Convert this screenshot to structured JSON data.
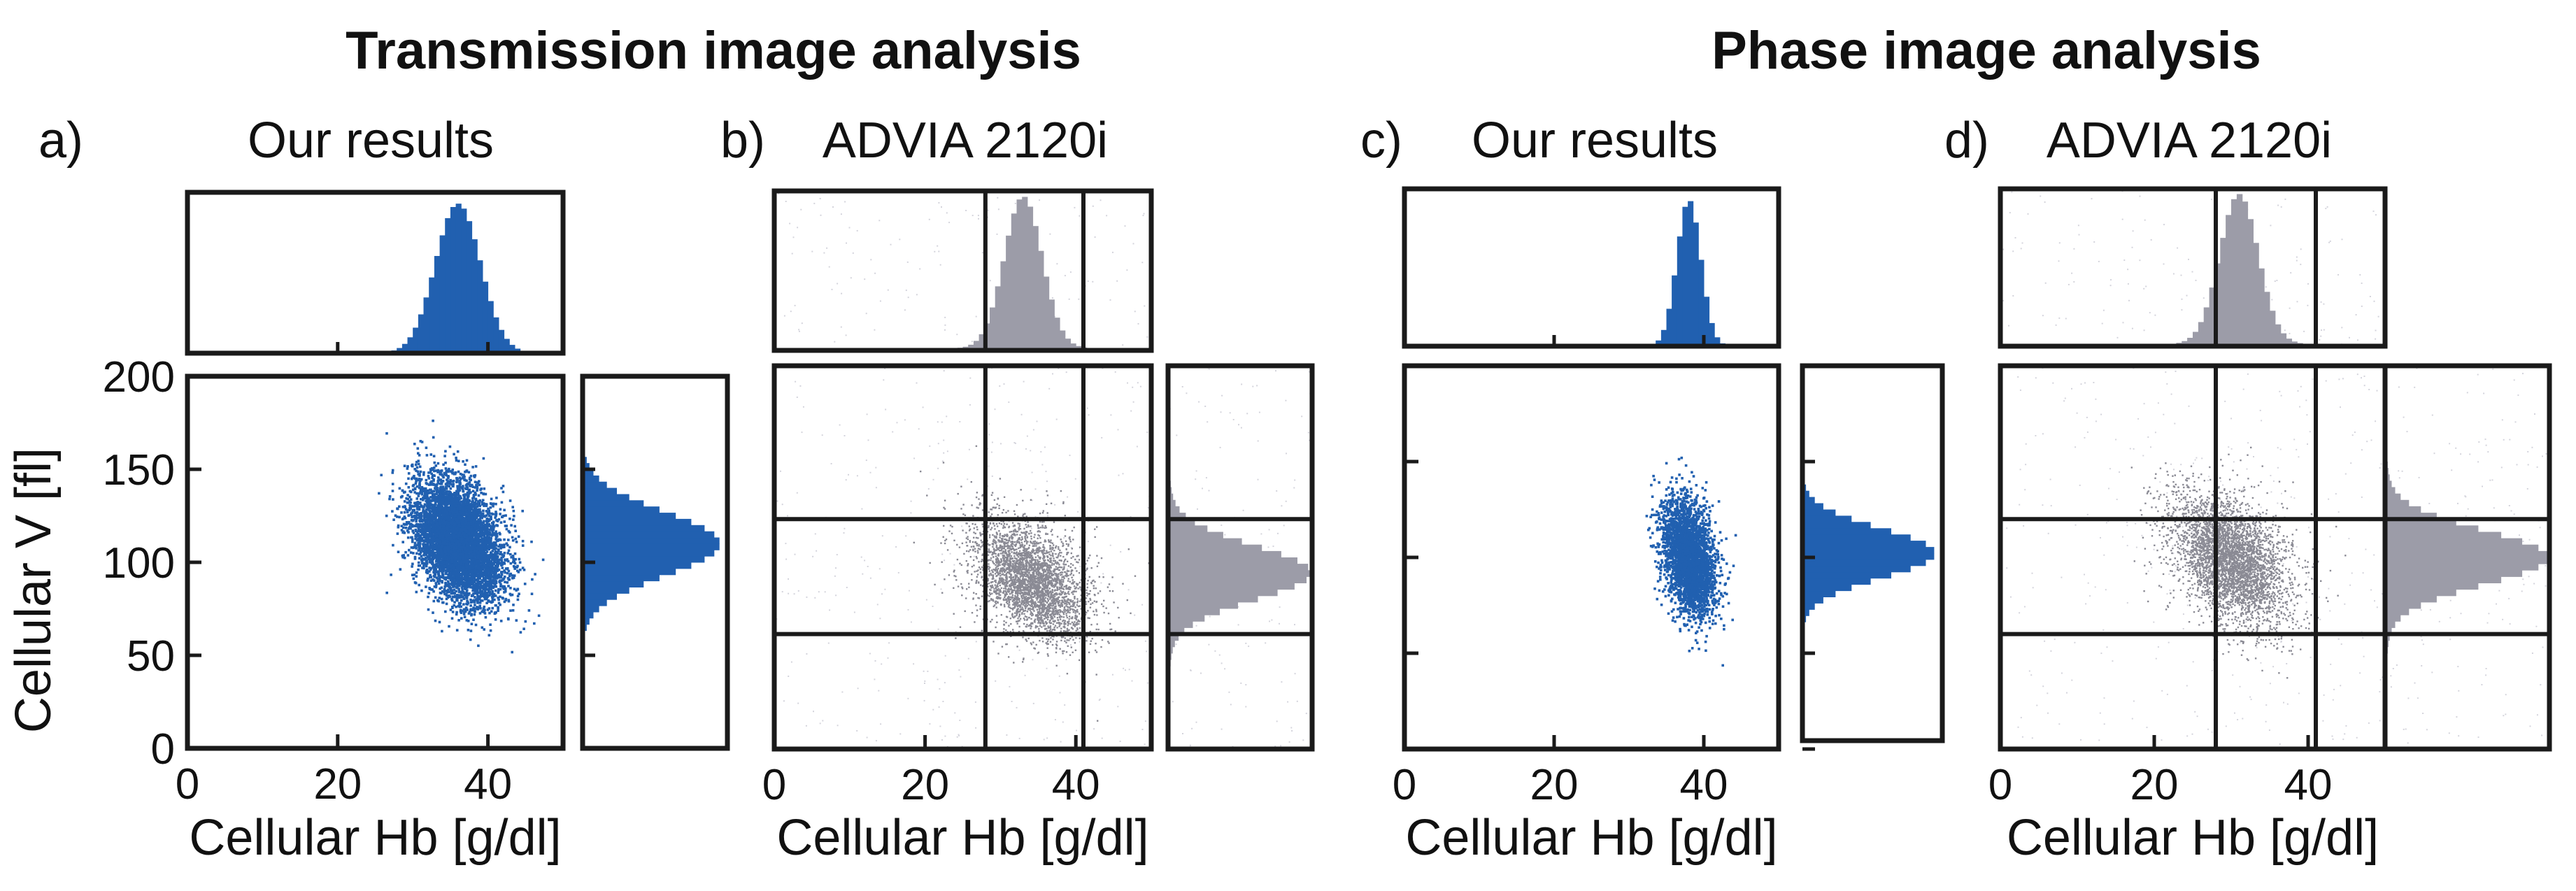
{
  "figure": {
    "titles": {
      "transmission": "Transmission image analysis",
      "phase": "Phase image analysis"
    }
  },
  "chart_data": [
    {
      "id": "a",
      "panel_label": "a)",
      "title": "Our results",
      "type": "scatter",
      "source": "ours",
      "xlabel": "Cellular Hb [g/dl]",
      "ylabel": "Cellular V [fl]",
      "xlim": [
        0,
        50
      ],
      "ylim": [
        0,
        200
      ],
      "x_ticks": [
        0,
        20,
        40
      ],
      "y_ticks": [
        0,
        50,
        100,
        150,
        200
      ],
      "color": "#2160b0",
      "cluster": {
        "x_mean": 36,
        "x_sd": 3.0,
        "y_mean": 112,
        "y_sd": 16,
        "corr": -0.35,
        "n_points": 6000
      },
      "marginal_x": {
        "center": 36,
        "spread": 3.0
      },
      "marginal_y": {
        "center": 110,
        "spread": 17
      },
      "gates": {
        "x": [],
        "y": []
      }
    },
    {
      "id": "b",
      "panel_label": "b)",
      "title": "ADVIA 2120i",
      "type": "scatter",
      "source": "advia",
      "xlabel": "Cellular Hb [g/dl]",
      "ylabel": "",
      "xlim": [
        0,
        50
      ],
      "ylim": [
        0,
        200
      ],
      "x_ticks": [
        0,
        20,
        40
      ],
      "y_ticks": [],
      "color": "#8a8a94",
      "cluster": {
        "x_mean": 34,
        "x_sd": 3.5,
        "y_mean": 88,
        "y_sd": 15,
        "corr": -0.45,
        "n_points": 3500
      },
      "marginal_x": {
        "center": 33,
        "spread": 2.5
      },
      "marginal_y": {
        "center": 92,
        "spread": 14
      },
      "gates": {
        "x": [
          28,
          41
        ],
        "y": [
          60,
          120
        ]
      }
    },
    {
      "id": "c",
      "panel_label": "c)",
      "title": "Our results",
      "type": "scatter",
      "source": "ours",
      "xlabel": "Cellular Hb [g/dl]",
      "ylabel": "",
      "xlim": [
        0,
        50
      ],
      "ylim": [
        0,
        200
      ],
      "x_ticks": [
        0,
        20,
        40
      ],
      "y_ticks": [],
      "color": "#2160b0",
      "cluster": {
        "x_mean": 38,
        "x_sd": 1.8,
        "y_mean": 100,
        "y_sd": 15,
        "corr": -0.3,
        "n_points": 3000
      },
      "marginal_x": {
        "center": 38,
        "spread": 1.6
      },
      "marginal_y": {
        "center": 100,
        "spread": 13
      },
      "gates": {
        "x": [],
        "y": []
      }
    },
    {
      "id": "d",
      "panel_label": "d)",
      "title": "ADVIA 2120i",
      "type": "scatter",
      "source": "advia",
      "xlabel": "Cellular Hb [g/dl]",
      "ylabel": "",
      "xlim": [
        0,
        50
      ],
      "ylim": [
        0,
        200
      ],
      "x_ticks": [
        0,
        20,
        40
      ],
      "y_ticks": [],
      "color": "#8a8a94",
      "cluster": {
        "x_mean": 30,
        "x_sd": 3.5,
        "y_mean": 98,
        "y_sd": 17,
        "corr": -0.45,
        "n_points": 4000
      },
      "marginal_x": {
        "center": 31,
        "spread": 2.5
      },
      "marginal_y": {
        "center": 100,
        "spread": 14
      },
      "gates": {
        "x": [
          28,
          41
        ],
        "y": [
          60,
          120
        ]
      }
    }
  ]
}
